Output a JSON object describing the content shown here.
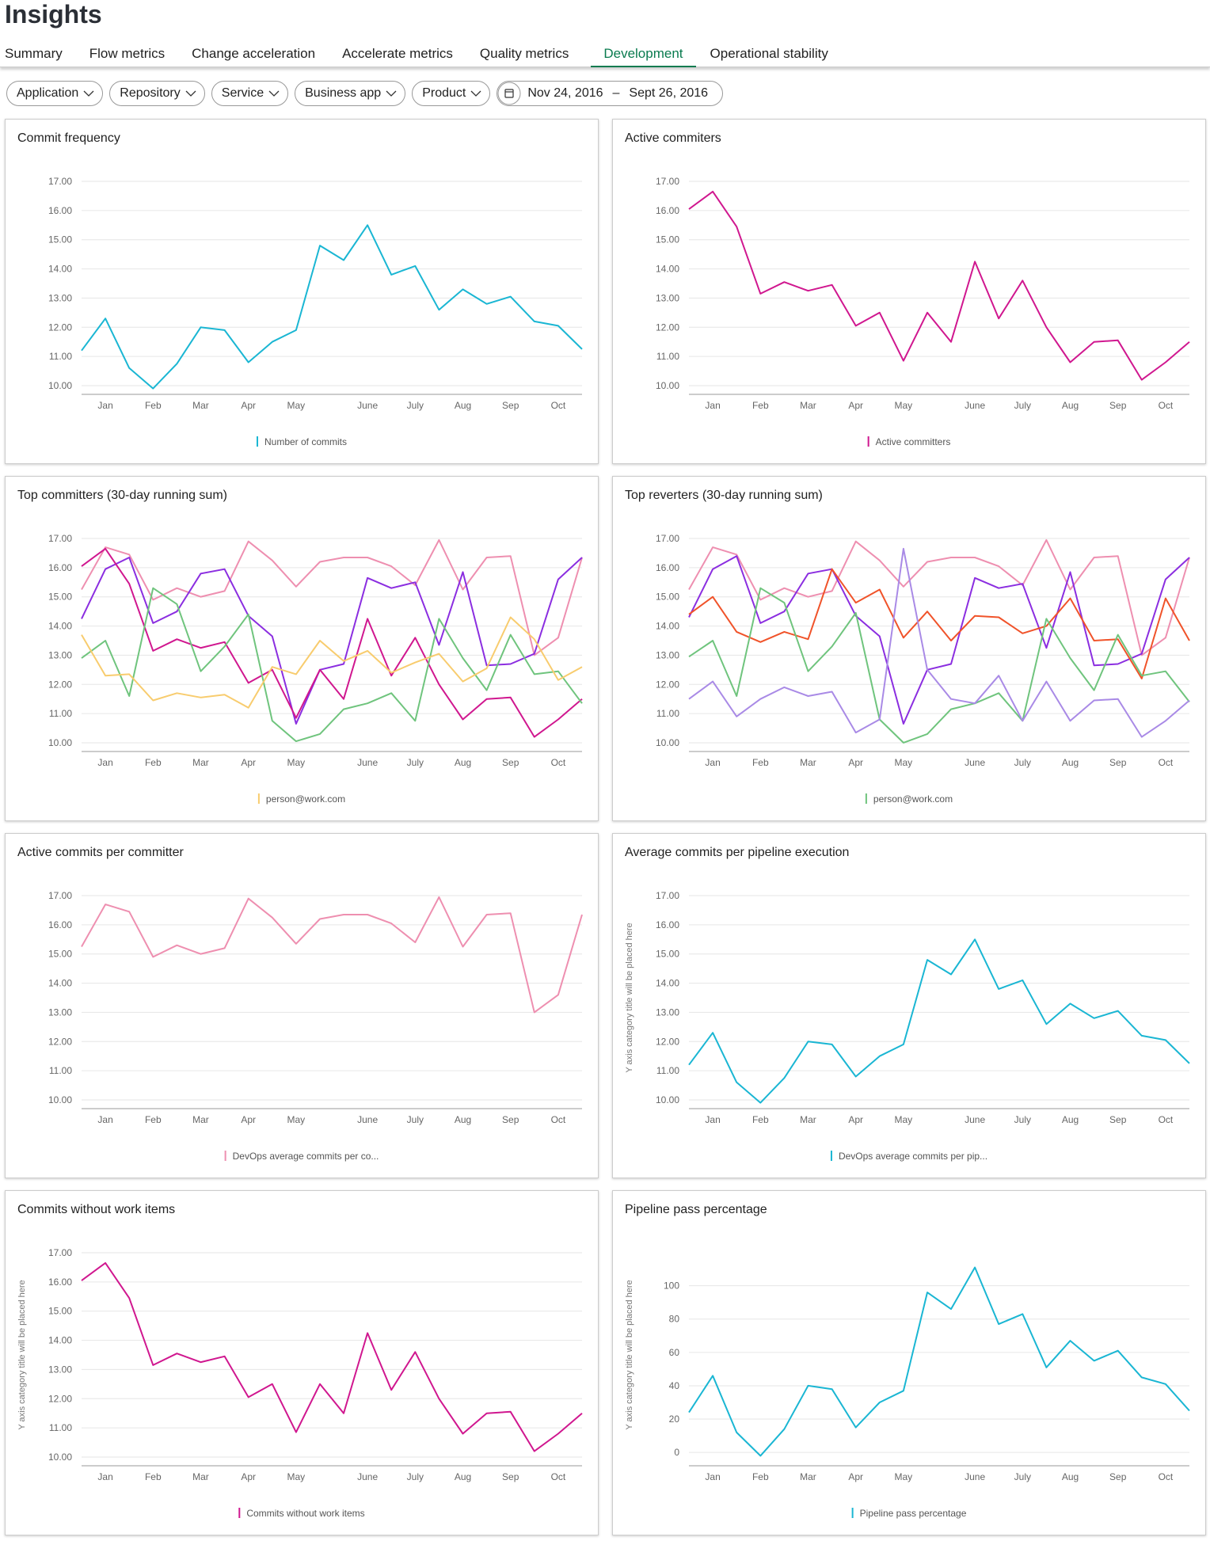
{
  "header": {
    "title": "Insights"
  },
  "tabs": [
    {
      "label": "Summary"
    },
    {
      "label": "Flow metrics"
    },
    {
      "label": "Change acceleration"
    },
    {
      "label": "Accelerate metrics"
    },
    {
      "label": "Quality metrics"
    },
    {
      "label": "Development",
      "active": true
    },
    {
      "label": "Operational stability"
    }
  ],
  "filters": [
    "Application",
    "Repository",
    "Service",
    "Business app",
    "Product"
  ],
  "date_range": {
    "start": "Nov 24, 2016",
    "separator": "–",
    "end": "Sept 26, 2016"
  },
  "chart_data": [
    {
      "type": "line",
      "title": "Commit frequency",
      "categories": [
        null,
        "Jan",
        null,
        "Feb",
        null,
        "Mar",
        null,
        "Apr",
        null,
        "May",
        null,
        null,
        "June",
        null,
        "July",
        null,
        "Aug",
        null,
        "Sep",
        null,
        "Oct",
        null
      ],
      "series": [
        {
          "name": "Number of commits",
          "color": "#1ab6d3",
          "values": [
            11.2,
            12.3,
            10.6,
            9.9,
            10.75,
            12.0,
            11.9,
            10.8,
            11.5,
            11.9,
            14.8,
            14.3,
            15.5,
            13.8,
            14.1,
            12.6,
            13.3,
            12.8,
            13.05,
            12.2,
            12.05,
            11.25
          ]
        }
      ],
      "ylim": [
        9.7,
        17.3
      ],
      "yticks": [
        {
          "value": 10,
          "label": "10.00"
        },
        {
          "value": 11,
          "label": "11.00"
        },
        {
          "value": 12,
          "label": "12.00"
        },
        {
          "value": 13,
          "label": "13.00"
        },
        {
          "value": 14,
          "label": "14.00"
        },
        {
          "value": 15,
          "label": "15.00"
        },
        {
          "value": 16,
          "label": "16.00"
        },
        {
          "value": 17,
          "label": "17.00"
        }
      ],
      "grid": true
    },
    {
      "type": "line",
      "title": "Active commiters",
      "categories": [
        null,
        "Jan",
        null,
        "Feb",
        null,
        "Mar",
        null,
        "Apr",
        null,
        "May",
        null,
        null,
        "June",
        null,
        "July",
        null,
        "Aug",
        null,
        "Sep",
        null,
        "Oct",
        null
      ],
      "series": [
        {
          "name": "Active committers",
          "color": "#d0178f",
          "values": [
            16.05,
            16.65,
            15.45,
            13.15,
            13.55,
            13.25,
            13.45,
            12.05,
            12.5,
            10.85,
            12.5,
            11.5,
            14.25,
            12.3,
            13.6,
            12.0,
            10.8,
            11.5,
            11.55,
            10.2,
            10.8,
            11.5
          ]
        }
      ],
      "ylim": [
        9.7,
        17.3
      ],
      "yticks": [
        {
          "value": 10,
          "label": "10.00"
        },
        {
          "value": 11,
          "label": "11.00"
        },
        {
          "value": 12,
          "label": "12.00"
        },
        {
          "value": 13,
          "label": "13.00"
        },
        {
          "value": 14,
          "label": "14.00"
        },
        {
          "value": 15,
          "label": "15.00"
        },
        {
          "value": 16,
          "label": "16.00"
        },
        {
          "value": 17,
          "label": "17.00"
        }
      ],
      "grid": true
    },
    {
      "type": "line",
      "title": "Top committers (30-day running sum)",
      "categories": [
        null,
        "Jan",
        null,
        "Feb",
        null,
        "Mar",
        null,
        "Apr",
        null,
        "May",
        null,
        null,
        "June",
        null,
        "July",
        null,
        "Aug",
        null,
        "Sep",
        null,
        "Oct",
        null
      ],
      "series": [
        {
          "color": "#ee8fb0",
          "values": [
            15.25,
            16.7,
            16.45,
            14.9,
            15.3,
            15.0,
            15.2,
            16.9,
            16.25,
            15.35,
            16.2,
            16.35,
            16.35,
            16.05,
            15.4,
            16.95,
            15.25,
            16.35,
            16.4,
            13.0,
            13.6,
            16.35
          ]
        },
        {
          "color": "#8b2ee0",
          "values": [
            14.25,
            15.95,
            16.35,
            14.1,
            14.5,
            15.8,
            15.95,
            14.35,
            13.65,
            10.65,
            12.5,
            12.7,
            15.65,
            15.3,
            15.5,
            13.35,
            15.85,
            12.65,
            12.7,
            13.05,
            15.6,
            16.35
          ]
        },
        {
          "color": "#d0178f",
          "values": [
            16.05,
            16.65,
            15.45,
            13.15,
            13.55,
            13.25,
            13.45,
            12.05,
            12.5,
            10.85,
            12.5,
            11.5,
            14.25,
            12.3,
            13.6,
            12.0,
            10.8,
            11.5,
            11.55,
            10.2,
            10.8,
            11.5
          ]
        },
        {
          "color": "#6fc47d",
          "values": [
            12.9,
            13.5,
            11.6,
            15.3,
            14.75,
            12.45,
            13.3,
            14.4,
            10.75,
            10.05,
            10.3,
            11.15,
            11.35,
            11.7,
            10.75,
            14.25,
            12.9,
            11.8,
            13.7,
            12.35,
            12.45,
            11.35
          ]
        },
        {
          "name": "person@work.com",
          "color": "#f8cc6e",
          "values": [
            13.7,
            12.3,
            12.35,
            11.45,
            11.7,
            11.55,
            11.65,
            11.2,
            12.6,
            12.35,
            13.5,
            12.8,
            13.15,
            12.4,
            12.75,
            13.05,
            12.1,
            12.55,
            14.3,
            13.55,
            12.15,
            12.6
          ]
        }
      ],
      "ylim": [
        9.7,
        17.3
      ],
      "yticks": [
        {
          "value": 10,
          "label": "10.00"
        },
        {
          "value": 11,
          "label": "11.00"
        },
        {
          "value": 12,
          "label": "12.00"
        },
        {
          "value": 13,
          "label": "13.00"
        },
        {
          "value": 14,
          "label": "14.00"
        },
        {
          "value": 15,
          "label": "15.00"
        },
        {
          "value": 16,
          "label": "16.00"
        },
        {
          "value": 17,
          "label": "17.00"
        }
      ],
      "grid": true
    },
    {
      "type": "line",
      "title": "Top reverters (30-day running sum)",
      "categories": [
        null,
        "Jan",
        null,
        "Feb",
        null,
        "Mar",
        null,
        "Apr",
        null,
        "May",
        null,
        null,
        "June",
        null,
        "July",
        null,
        "Aug",
        null,
        "Sep",
        null,
        "Oct",
        null
      ],
      "series": [
        {
          "color": "#ee8fb0",
          "values": [
            15.25,
            16.7,
            16.45,
            14.9,
            15.3,
            15.0,
            15.2,
            16.9,
            16.25,
            15.35,
            16.2,
            16.35,
            16.35,
            16.05,
            15.4,
            16.95,
            15.25,
            16.35,
            16.4,
            13.0,
            13.6,
            16.35
          ]
        },
        {
          "color": "#8b2ee0",
          "values": [
            14.3,
            15.95,
            16.4,
            14.1,
            14.5,
            15.8,
            15.95,
            14.35,
            13.65,
            10.65,
            12.5,
            12.7,
            15.65,
            15.3,
            15.45,
            13.25,
            15.85,
            12.65,
            12.7,
            13.05,
            15.6,
            16.35
          ]
        },
        {
          "color": "#f0532a",
          "values": [
            14.4,
            15.0,
            13.8,
            13.45,
            13.8,
            13.55,
            15.95,
            14.8,
            15.25,
            13.6,
            14.5,
            13.5,
            14.35,
            14.3,
            13.75,
            14.0,
            14.95,
            13.5,
            13.55,
            12.2,
            14.95,
            13.5
          ]
        },
        {
          "name": "person@work.com",
          "color": "#6fc47d",
          "values": [
            12.95,
            13.5,
            11.6,
            15.3,
            14.8,
            12.45,
            13.3,
            14.45,
            10.8,
            10.0,
            10.3,
            11.15,
            11.35,
            11.7,
            10.75,
            14.25,
            12.9,
            11.8,
            13.7,
            12.3,
            12.45,
            11.4
          ]
        },
        {
          "color": "#a98ae6",
          "values": [
            11.5,
            12.1,
            10.9,
            11.5,
            11.9,
            11.6,
            11.75,
            10.35,
            10.8,
            16.65,
            12.5,
            11.5,
            11.35,
            12.3,
            10.75,
            12.1,
            10.75,
            11.45,
            11.5,
            10.2,
            10.75,
            11.45
          ]
        }
      ],
      "ylim": [
        9.7,
        17.3
      ],
      "yticks": [
        {
          "value": 10,
          "label": "10.00"
        },
        {
          "value": 11,
          "label": "11.00"
        },
        {
          "value": 12,
          "label": "12.00"
        },
        {
          "value": 13,
          "label": "13.00"
        },
        {
          "value": 14,
          "label": "14.00"
        },
        {
          "value": 15,
          "label": "15.00"
        },
        {
          "value": 16,
          "label": "16.00"
        },
        {
          "value": 17,
          "label": "17.00"
        }
      ],
      "grid": true
    },
    {
      "type": "line",
      "title": "Active commits per committer",
      "categories": [
        null,
        "Jan",
        null,
        "Feb",
        null,
        "Mar",
        null,
        "Apr",
        null,
        "May",
        null,
        null,
        "June",
        null,
        "July",
        null,
        "Aug",
        null,
        "Sep",
        null,
        "Oct",
        null
      ],
      "series": [
        {
          "name": "DevOps average commits per co...",
          "color": "#ee8fb0",
          "values": [
            15.25,
            16.7,
            16.45,
            14.9,
            15.3,
            15.0,
            15.2,
            16.9,
            16.25,
            15.35,
            16.2,
            16.35,
            16.35,
            16.05,
            15.4,
            16.95,
            15.25,
            16.35,
            16.4,
            13.0,
            13.6,
            16.35
          ]
        }
      ],
      "ylim": [
        9.7,
        17.3
      ],
      "yticks": [
        {
          "value": 10,
          "label": "10.00"
        },
        {
          "value": 11,
          "label": "11.00"
        },
        {
          "value": 12,
          "label": "12.00"
        },
        {
          "value": 13,
          "label": "13.00"
        },
        {
          "value": 14,
          "label": "14.00"
        },
        {
          "value": 15,
          "label": "15.00"
        },
        {
          "value": 16,
          "label": "16.00"
        },
        {
          "value": 17,
          "label": "17.00"
        }
      ],
      "grid": true
    },
    {
      "type": "line",
      "title": "Average commits per pipeline execution",
      "y_label": "Y axis category title will be placed here",
      "categories": [
        null,
        "Jan",
        null,
        "Feb",
        null,
        "Mar",
        null,
        "Apr",
        null,
        "May",
        null,
        null,
        "June",
        null,
        "July",
        null,
        "Aug",
        null,
        "Sep",
        null,
        "Oct",
        null
      ],
      "series": [
        {
          "name": "DevOps average commits per pip...",
          "color": "#1ab6d3",
          "values": [
            11.2,
            12.3,
            10.6,
            9.9,
            10.75,
            12.0,
            11.9,
            10.8,
            11.5,
            11.9,
            14.8,
            14.3,
            15.5,
            13.8,
            14.1,
            12.6,
            13.3,
            12.8,
            13.05,
            12.2,
            12.05,
            11.25
          ]
        }
      ],
      "ylim": [
        9.7,
        17.3
      ],
      "yticks": [
        {
          "value": 10,
          "label": "10.00"
        },
        {
          "value": 11,
          "label": "11.00"
        },
        {
          "value": 12,
          "label": "12.00"
        },
        {
          "value": 13,
          "label": "13.00"
        },
        {
          "value": 14,
          "label": "14.00"
        },
        {
          "value": 15,
          "label": "15.00"
        },
        {
          "value": 16,
          "label": "16.00"
        },
        {
          "value": 17,
          "label": "17.00"
        }
      ],
      "grid": true
    },
    {
      "type": "line",
      "title": "Commits without work items",
      "y_label": "Y axis category title will be placed here",
      "categories": [
        null,
        "Jan",
        null,
        "Feb",
        null,
        "Mar",
        null,
        "Apr",
        null,
        "May",
        null,
        null,
        "June",
        null,
        "July",
        null,
        "Aug",
        null,
        "Sep",
        null,
        "Oct",
        null
      ],
      "series": [
        {
          "name": "Commits without work items",
          "color": "#d0178f",
          "values": [
            16.05,
            16.65,
            15.45,
            13.15,
            13.55,
            13.25,
            13.45,
            12.05,
            12.5,
            10.85,
            12.5,
            11.5,
            14.25,
            12.3,
            13.6,
            12.0,
            10.8,
            11.5,
            11.55,
            10.2,
            10.8,
            11.5
          ]
        }
      ],
      "ylim": [
        9.7,
        17.3
      ],
      "yticks": [
        {
          "value": 10,
          "label": "10.00"
        },
        {
          "value": 11,
          "label": "11.00"
        },
        {
          "value": 12,
          "label": "12.00"
        },
        {
          "value": 13,
          "label": "13.00"
        },
        {
          "value": 14,
          "label": "14.00"
        },
        {
          "value": 15,
          "label": "15.00"
        },
        {
          "value": 16,
          "label": "16.00"
        },
        {
          "value": 17,
          "label": "17.00"
        }
      ],
      "grid": true
    },
    {
      "type": "line",
      "title": "Pipeline pass percentage",
      "y_label": "Y axis category title will be placed here",
      "categories": [
        null,
        "Jan",
        null,
        "Feb",
        null,
        "Mar",
        null,
        "Apr",
        null,
        "May",
        null,
        null,
        "June",
        null,
        "July",
        null,
        "Aug",
        null,
        "Sep",
        null,
        "Oct",
        null
      ],
      "series": [
        {
          "name": "Pipeline pass percentage",
          "color": "#1ab6d3",
          "values": [
            24,
            46,
            12,
            -2,
            14,
            40,
            38,
            15,
            30,
            37,
            96,
            86,
            111,
            77,
            83,
            51,
            67,
            55,
            61,
            45,
            41,
            25
          ]
        }
      ],
      "ylim": [
        -8,
        125
      ],
      "yticks": [
        0,
        20,
        40,
        60,
        80,
        100
      ],
      "grid": true
    }
  ]
}
